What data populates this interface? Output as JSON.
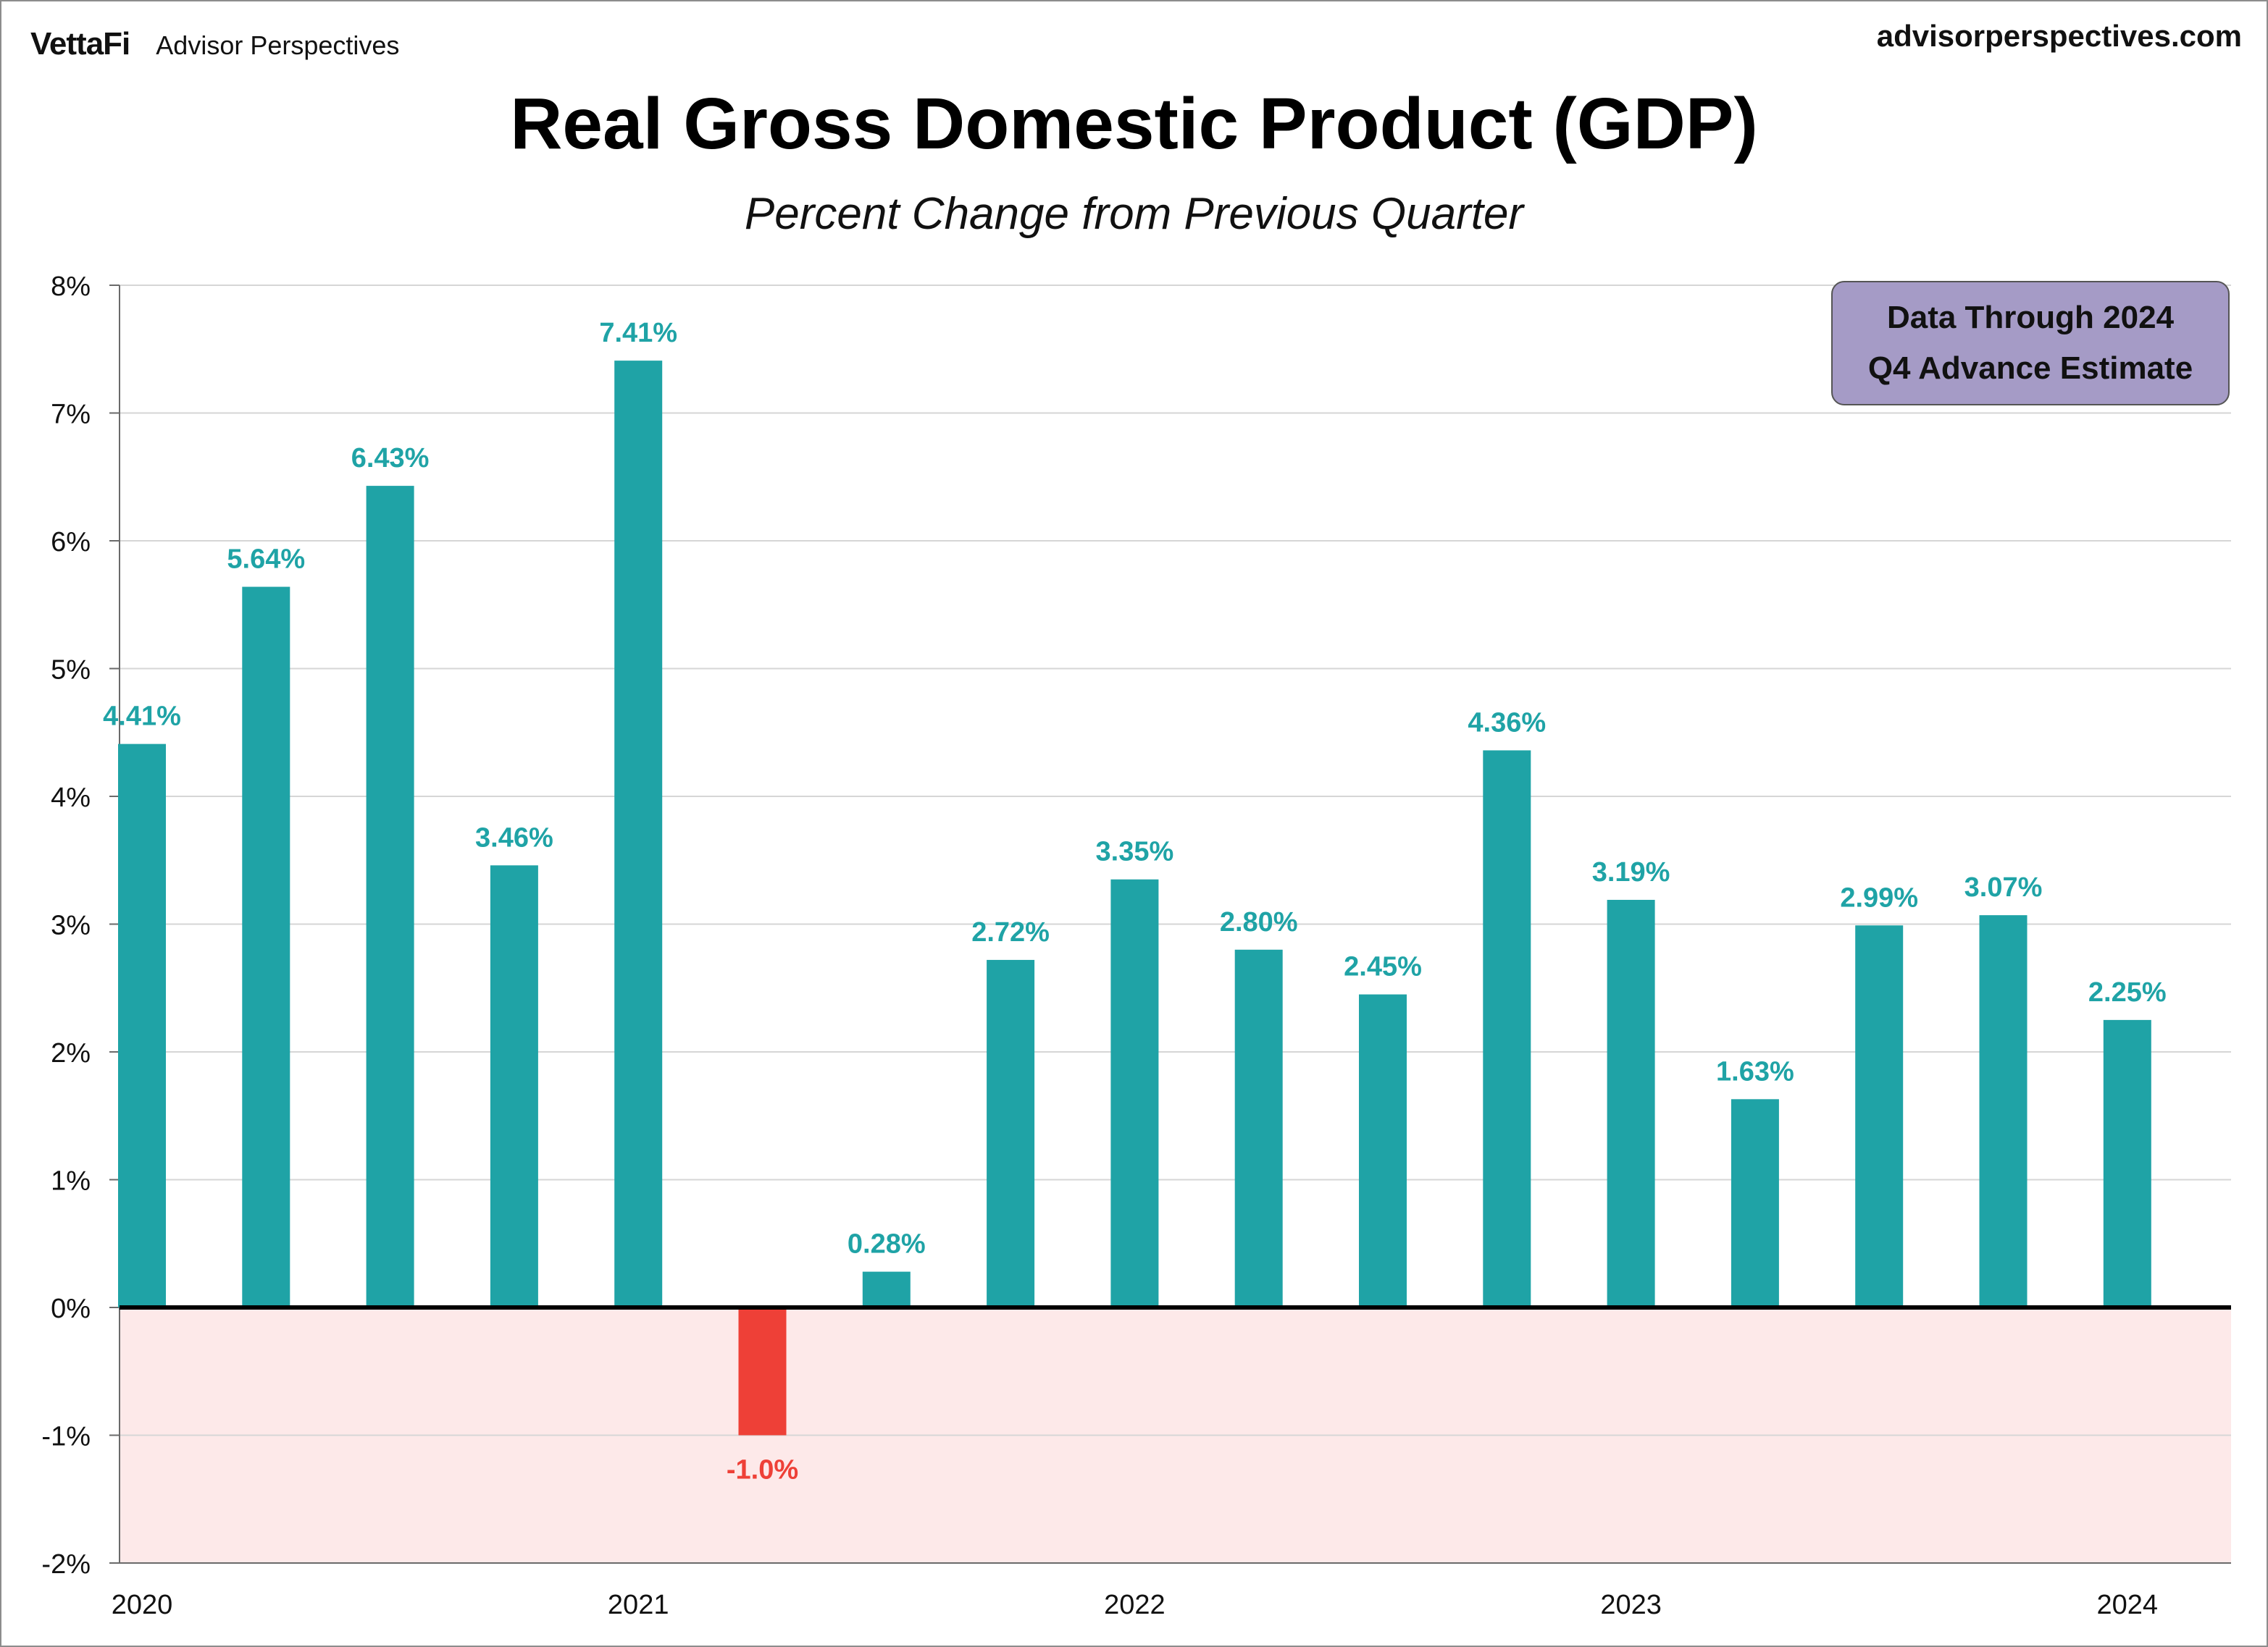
{
  "header": {
    "logo": "VettaFi",
    "brand": "Advisor Perspectives",
    "site": "advisorperspectives.com"
  },
  "note": {
    "line1": "Data Through 2024",
    "line2": "Q4 Advance Estimate"
  },
  "colors": {
    "positive": "#1fa3a6",
    "negative": "#ee4037",
    "negative_zone": "#fde9e9",
    "grid": "#d6d6d6",
    "note_fill": "#a59bc6"
  },
  "chart_data": {
    "type": "bar",
    "title": "Real Gross Domestic Product (GDP)",
    "subtitle": "Percent Change from Previous Quarter",
    "ylim": [
      -2,
      8
    ],
    "y_ticks": [
      {
        "value": 8,
        "label": "8%"
      },
      {
        "value": 7,
        "label": "7%"
      },
      {
        "value": 6,
        "label": "6%"
      },
      {
        "value": 5,
        "label": "5%"
      },
      {
        "value": 4,
        "label": "4%"
      },
      {
        "value": 3,
        "label": "3%"
      },
      {
        "value": 2,
        "label": "2%"
      },
      {
        "value": 1,
        "label": "1%"
      },
      {
        "value": 0,
        "label": "0%"
      },
      {
        "value": -1,
        "label": "-1%"
      },
      {
        "value": -2,
        "label": "-2%"
      }
    ],
    "x_ticks": [
      {
        "at": 0,
        "label": "2020"
      },
      {
        "at": 4,
        "label": "2021"
      },
      {
        "at": 8,
        "label": "2022"
      },
      {
        "at": 12,
        "label": "2023"
      },
      {
        "at": 16,
        "label": "2024"
      }
    ],
    "values": [
      4.41,
      5.64,
      6.43,
      3.46,
      7.41,
      -1.0,
      0.28,
      2.72,
      3.35,
      2.8,
      2.45,
      4.36,
      3.19,
      1.63,
      2.99,
      3.07,
      2.25
    ],
    "labels": [
      "4.41%",
      "5.64%",
      "6.43%",
      "3.46%",
      "7.41%",
      "-1.0%",
      "0.28%",
      "2.72%",
      "3.35%",
      "2.80%",
      "2.45%",
      "4.36%",
      "3.19%",
      "1.63%",
      "2.99%",
      "3.07%",
      "2.25%"
    ],
    "grid": true,
    "negative_zone_shaded": true
  }
}
